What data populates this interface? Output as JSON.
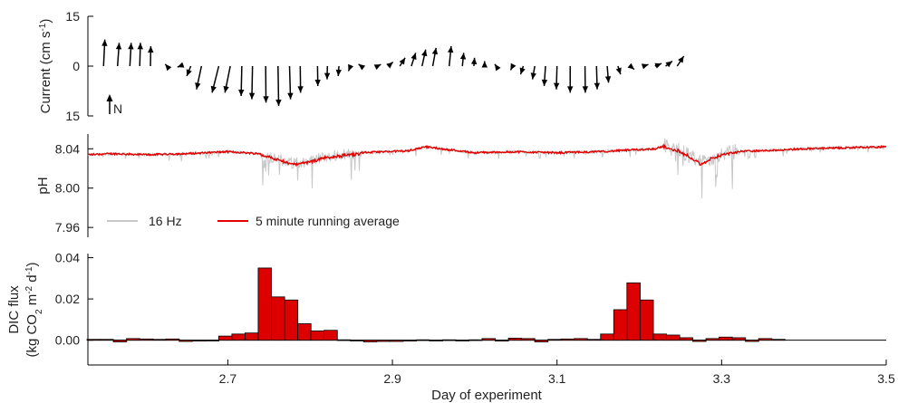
{
  "chart_data": [
    {
      "type": "vector",
      "panel": "current",
      "ylabel": "Current (cm s-1)",
      "ylabel_parts": {
        "main": "Current (cm s",
        "sup": "-1",
        "end": ")"
      },
      "yticks": [
        "15",
        "0",
        "15"
      ],
      "north_label": "N",
      "x_range": [
        2.53,
        3.5
      ],
      "vectors": [
        {
          "x": 2.549,
          "u": 0.4,
          "v": 8
        },
        {
          "x": 2.566,
          "u": 0.5,
          "v": 7
        },
        {
          "x": 2.581,
          "u": 0.4,
          "v": 7
        },
        {
          "x": 2.593,
          "u": 0.2,
          "v": 7
        },
        {
          "x": 2.606,
          "u": 0.1,
          "v": 6
        },
        {
          "x": 2.626,
          "u": -0.5,
          "v": 0.6
        },
        {
          "x": 2.642,
          "u": -0.8,
          "v": -0.3
        },
        {
          "x": 2.655,
          "u": -1.2,
          "v": -3
        },
        {
          "x": 2.668,
          "u": -1.5,
          "v": -7
        },
        {
          "x": 2.689,
          "u": -2.0,
          "v": -8
        },
        {
          "x": 2.703,
          "u": -1.6,
          "v": -8
        },
        {
          "x": 2.717,
          "u": -0.2,
          "v": -9
        },
        {
          "x": 2.73,
          "u": -0.2,
          "v": -10
        },
        {
          "x": 2.746,
          "u": 0.1,
          "v": -11
        },
        {
          "x": 2.761,
          "u": 0.2,
          "v": -12
        },
        {
          "x": 2.775,
          "u": 0.3,
          "v": -10
        },
        {
          "x": 2.788,
          "u": 0.1,
          "v": -8
        },
        {
          "x": 2.809,
          "u": 0.1,
          "v": -6
        },
        {
          "x": 2.821,
          "u": -0.1,
          "v": -4
        },
        {
          "x": 2.835,
          "u": -0.2,
          "v": -3
        },
        {
          "x": 2.849,
          "u": -0.6,
          "v": -1.5
        },
        {
          "x": 2.862,
          "u": -0.8,
          "v": 0.6
        },
        {
          "x": 2.882,
          "u": 1.0,
          "v": 0.5
        },
        {
          "x": 2.895,
          "u": 1.4,
          "v": 1.2
        },
        {
          "x": 2.909,
          "u": 1.6,
          "v": 2.5
        },
        {
          "x": 2.923,
          "u": 1.3,
          "v": 4
        },
        {
          "x": 2.936,
          "u": 1.1,
          "v": 5
        },
        {
          "x": 2.949,
          "u": 1.0,
          "v": 5.5
        },
        {
          "x": 2.969,
          "u": 0.6,
          "v": 6
        },
        {
          "x": 2.985,
          "u": 0.4,
          "v": 4
        },
        {
          "x": 2.999,
          "u": 0.2,
          "v": 2.5
        },
        {
          "x": 3.012,
          "u": 0.0,
          "v": 1.5
        },
        {
          "x": 3.026,
          "u": -0.4,
          "v": 0.6
        },
        {
          "x": 3.046,
          "u": -0.6,
          "v": -1.2
        },
        {
          "x": 3.059,
          "u": -0.8,
          "v": -2.5
        },
        {
          "x": 3.073,
          "u": -0.7,
          "v": -4
        },
        {
          "x": 3.086,
          "u": -0.4,
          "v": -6
        },
        {
          "x": 3.1,
          "u": -0.2,
          "v": -7
        },
        {
          "x": 3.116,
          "u": 0.0,
          "v": -8
        },
        {
          "x": 3.134,
          "u": 0.1,
          "v": -8
        },
        {
          "x": 3.148,
          "u": 0.2,
          "v": -7
        },
        {
          "x": 3.161,
          "u": 0.4,
          "v": -5
        },
        {
          "x": 3.174,
          "u": 0.8,
          "v": -2.5
        },
        {
          "x": 3.189,
          "u": 1.2,
          "v": -1
        },
        {
          "x": 3.205,
          "u": 1.5,
          "v": 0.5
        },
        {
          "x": 3.219,
          "u": 2.0,
          "v": 0.8
        },
        {
          "x": 3.232,
          "u": 2.0,
          "v": 1.5
        },
        {
          "x": 3.246,
          "u": 2.0,
          "v": 3
        }
      ]
    },
    {
      "type": "line",
      "panel": "ph",
      "ylabel": "pH",
      "yticks": [
        8.04,
        8.0,
        7.96
      ],
      "ylim": [
        7.95,
        8.055
      ],
      "series": [
        {
          "name": "16 Hz",
          "color": "#c8c8c8"
        },
        {
          "name": "5 minute running average",
          "color": "#e00000"
        }
      ],
      "avg_points": [
        [
          2.53,
          8.034
        ],
        [
          2.56,
          8.035
        ],
        [
          2.6,
          8.034
        ],
        [
          2.65,
          8.035
        ],
        [
          2.7,
          8.037
        ],
        [
          2.74,
          8.035
        ],
        [
          2.76,
          8.03
        ],
        [
          2.78,
          8.025
        ],
        [
          2.8,
          8.028
        ],
        [
          2.82,
          8.032
        ],
        [
          2.86,
          8.036
        ],
        [
          2.92,
          8.038
        ],
        [
          2.94,
          8.042
        ],
        [
          2.97,
          8.039
        ],
        [
          3.0,
          8.036
        ],
        [
          3.05,
          8.037
        ],
        [
          3.1,
          8.036
        ],
        [
          3.15,
          8.037
        ],
        [
          3.22,
          8.04
        ],
        [
          3.23,
          8.043
        ],
        [
          3.25,
          8.038
        ],
        [
          3.26,
          8.033
        ],
        [
          3.275,
          8.025
        ],
        [
          3.29,
          8.032
        ],
        [
          3.31,
          8.037
        ],
        [
          3.35,
          8.038
        ],
        [
          3.4,
          8.04
        ],
        [
          3.45,
          8.041
        ],
        [
          3.5,
          8.042
        ]
      ]
    },
    {
      "type": "bar",
      "panel": "flux",
      "xlabel": "Day of experiment",
      "ylabel_line1": "DIC flux",
      "ylabel_line2": {
        "a": "(kg CO",
        "sub": "2",
        "b": " m",
        "sup1": "-2",
        "c": " d",
        "sup2": "-1",
        "d": ")"
      },
      "yticks": [
        "0.04",
        "0.02",
        "0.00"
      ],
      "ylim": [
        -0.012,
        0.042
      ],
      "xticks": [
        "2.7",
        "2.9",
        "3.1",
        "3.3",
        "3.5"
      ],
      "xtick_values": [
        2.7,
        2.9,
        3.1,
        3.3,
        3.5
      ],
      "xlim": [
        2.53,
        3.5
      ],
      "bar_width_days": 0.0162,
      "bar_color": "#dd0000",
      "bars": [
        {
          "x": 2.537,
          "v": 0.0004
        },
        {
          "x": 2.553,
          "v": 0.0004
        },
        {
          "x": 2.569,
          "v": -0.0008
        },
        {
          "x": 2.585,
          "v": 0.0008
        },
        {
          "x": 2.601,
          "v": 0.0006
        },
        {
          "x": 2.617,
          "v": 0.0004
        },
        {
          "x": 2.633,
          "v": 0.0006
        },
        {
          "x": 2.649,
          "v": -0.0006
        },
        {
          "x": 2.665,
          "v": -0.0004
        },
        {
          "x": 2.681,
          "v": 0.0
        },
        {
          "x": 2.697,
          "v": 0.002
        },
        {
          "x": 2.713,
          "v": 0.003
        },
        {
          "x": 2.729,
          "v": 0.0035
        },
        {
          "x": 2.745,
          "v": 0.035
        },
        {
          "x": 2.761,
          "v": 0.021
        },
        {
          "x": 2.777,
          "v": 0.0195
        },
        {
          "x": 2.793,
          "v": 0.008
        },
        {
          "x": 2.809,
          "v": 0.0045
        },
        {
          "x": 2.825,
          "v": 0.0048
        },
        {
          "x": 2.841,
          "v": 0.0002
        },
        {
          "x": 2.857,
          "v": 0.0
        },
        {
          "x": 2.873,
          "v": -0.0008
        },
        {
          "x": 2.889,
          "v": -0.0006
        },
        {
          "x": 2.905,
          "v": -0.0006
        },
        {
          "x": 2.921,
          "v": -0.0004
        },
        {
          "x": 2.937,
          "v": 0.0002
        },
        {
          "x": 2.953,
          "v": 0.0
        },
        {
          "x": 2.969,
          "v": 0.0002
        },
        {
          "x": 2.985,
          "v": 0.0
        },
        {
          "x": 3.001,
          "v": 0.0002
        },
        {
          "x": 3.017,
          "v": 0.0008
        },
        {
          "x": 3.033,
          "v": -0.0004
        },
        {
          "x": 3.049,
          "v": 0.001
        },
        {
          "x": 3.065,
          "v": 0.0008
        },
        {
          "x": 3.081,
          "v": -0.0008
        },
        {
          "x": 3.097,
          "v": 0.0004
        },
        {
          "x": 3.113,
          "v": 0.0006
        },
        {
          "x": 3.129,
          "v": 0.0008
        },
        {
          "x": 3.145,
          "v": 0.0004
        },
        {
          "x": 3.161,
          "v": 0.003
        },
        {
          "x": 3.177,
          "v": 0.0148
        },
        {
          "x": 3.193,
          "v": 0.0278
        },
        {
          "x": 3.209,
          "v": 0.0195
        },
        {
          "x": 3.225,
          "v": 0.003
        },
        {
          "x": 3.241,
          "v": 0.0025
        },
        {
          "x": 3.257,
          "v": 0.0012
        },
        {
          "x": 3.273,
          "v": -0.0006
        },
        {
          "x": 3.289,
          "v": 0.0008
        },
        {
          "x": 3.305,
          "v": 0.0015
        },
        {
          "x": 3.321,
          "v": 0.0012
        },
        {
          "x": 3.337,
          "v": -0.0006
        },
        {
          "x": 3.353,
          "v": 0.0008
        },
        {
          "x": 3.369,
          "v": 0.0004
        }
      ]
    }
  ]
}
